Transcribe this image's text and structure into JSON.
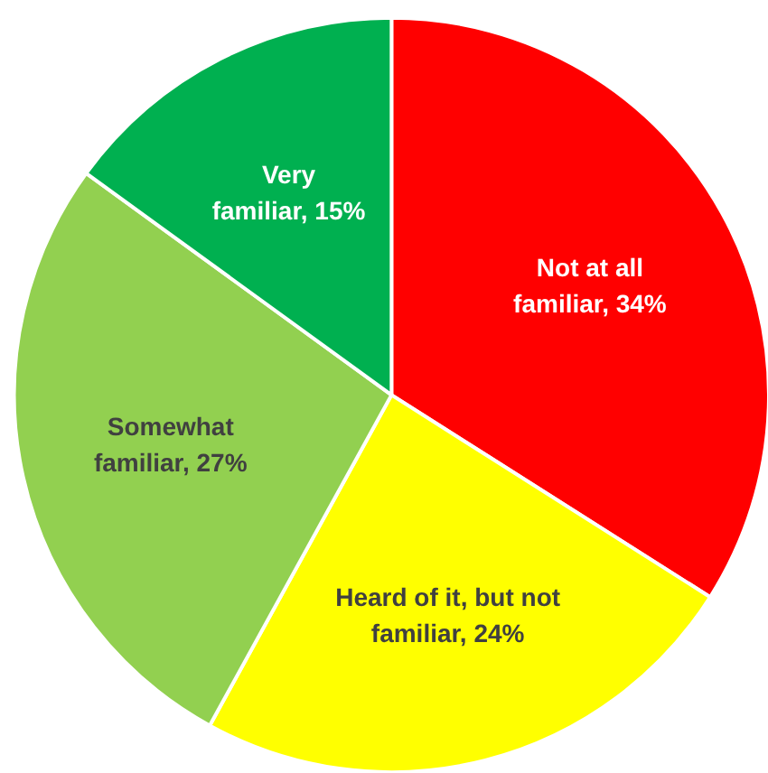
{
  "chart_data": {
    "type": "pie",
    "categories": [
      "Not at all familiar",
      "Heard of it, but not familiar",
      "Somewhat familiar",
      "Very familiar"
    ],
    "values": [
      34,
      24,
      27,
      15
    ],
    "value_labels": [
      "34%",
      "24%",
      "27%",
      "15%"
    ],
    "colors": [
      "#ff0000",
      "#ffff00",
      "#92d050",
      "#00b050"
    ]
  }
}
